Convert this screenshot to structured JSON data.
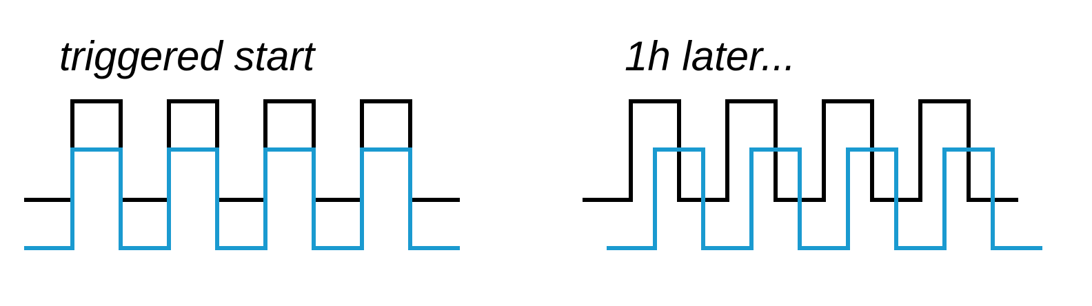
{
  "panels": [
    {
      "label": "triggered start",
      "phase_offset_periods": 0,
      "cycles": 4
    },
    {
      "label": "1h later...",
      "phase_offset_periods": 0.25,
      "cycles": 4
    }
  ],
  "colors": {
    "reference_signal": "#000000",
    "measured_signal": "#1a9ad0",
    "background": "#ffffff"
  },
  "signals": {
    "reference_name": "black square wave",
    "measured_name": "blue square wave"
  }
}
